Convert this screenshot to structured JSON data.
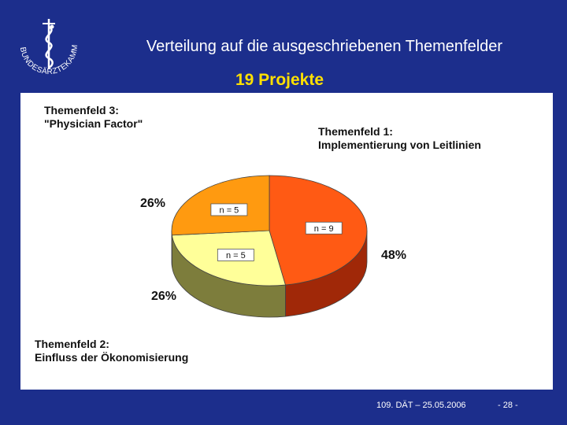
{
  "header": {
    "title": "Verteilung auf die ausgeschriebenen Themenfelder",
    "subtitle": "19 Projekte",
    "logo_text": "BUNDESÄRZTEKAMMER"
  },
  "chart_data": {
    "type": "pie",
    "slices": [
      {
        "label_line1": "Themenfeld 1:",
        "label_line2": "Implementierung von Leitlinien",
        "value": 9,
        "n_label": "n = 9",
        "percent": "48%",
        "color": "#ff5a14"
      },
      {
        "label_line1": "Themenfeld 2:",
        "label_line2": "Einfluss der Ökonomisierung",
        "value": 5,
        "n_label": "n = 5",
        "percent": "26%",
        "color": "#ffff99"
      },
      {
        "label_line1": "Themenfeld 3:",
        "label_line2": "\"Physician Factor\"",
        "value": 5,
        "n_label": "n = 5",
        "percent": "26%",
        "color": "#ff9a10"
      }
    ],
    "side_colors": [
      "#a02808",
      "#7d7d3c",
      "#a86010"
    ]
  },
  "footer": {
    "date": "109. DÄT – 25.05.2006",
    "page": "- 28 -"
  },
  "colors": {
    "background": "#1c2e8c",
    "subtitle": "#ffe000"
  }
}
